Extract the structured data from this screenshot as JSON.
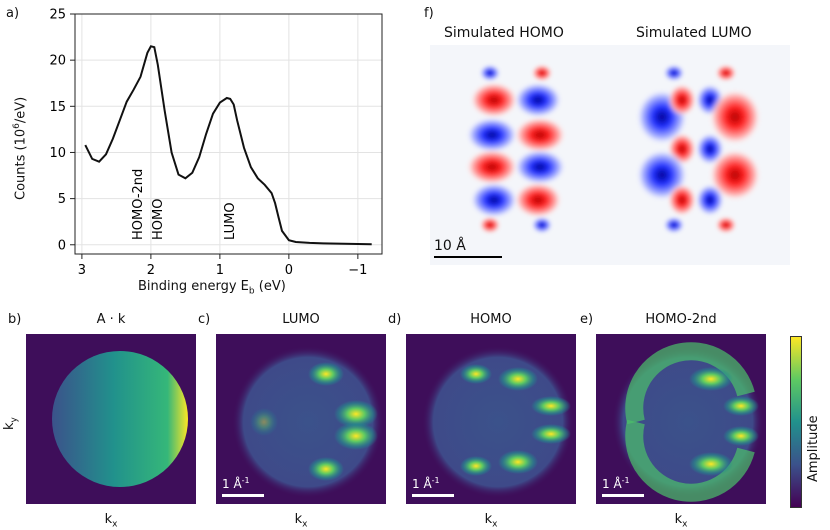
{
  "chart_data": [
    {
      "type": "line",
      "panel": "a)",
      "xlabel": "Binding energy E",
      "xlabel_sub": "b",
      "xlabel_unit": " (eV)",
      "ylabel": "Counts (10",
      "ylabel_sup": "6",
      "ylabel_unit": "/eV)",
      "xlim": [
        3.1,
        -1.35
      ],
      "ylim": [
        -1,
        25
      ],
      "xticks": [
        3,
        2,
        1,
        0,
        -1
      ],
      "xtick_labels": [
        "3",
        "2",
        "1",
        "0",
        "−1"
      ],
      "yticks": [
        0,
        5,
        10,
        15,
        20,
        25
      ],
      "grid": true,
      "x": [
        2.95,
        2.85,
        2.75,
        2.65,
        2.55,
        2.45,
        2.35,
        2.25,
        2.15,
        2.05,
        2.0,
        1.95,
        1.9,
        1.8,
        1.7,
        1.6,
        1.5,
        1.4,
        1.3,
        1.2,
        1.1,
        1.0,
        0.9,
        0.85,
        0.8,
        0.75,
        0.65,
        0.55,
        0.45,
        0.35,
        0.25,
        0.2,
        0.15,
        0.1,
        0.0,
        -0.1,
        -0.3,
        -0.5,
        -0.8,
        -1.2
      ],
      "y": [
        10.8,
        9.3,
        9.0,
        9.8,
        11.5,
        13.5,
        15.5,
        16.8,
        18.2,
        20.8,
        21.5,
        21.4,
        19.5,
        14.5,
        10.0,
        7.6,
        7.2,
        7.8,
        9.5,
        12.0,
        14.2,
        15.4,
        15.9,
        15.8,
        15.2,
        13.5,
        10.5,
        8.4,
        7.2,
        6.5,
        5.6,
        4.5,
        3.0,
        1.5,
        0.5,
        0.3,
        0.2,
        0.15,
        0.1,
        0.05
      ],
      "annotations": [
        "HOMO-2nd",
        "HOMO",
        "LUMO"
      ]
    }
  ],
  "panels": {
    "a": "a)",
    "b": "b)",
    "c": "c)",
    "d": "d)",
    "e": "e)",
    "f": "f)"
  },
  "simulation": {
    "homo_title": "Simulated HOMO",
    "lumo_title": "Simulated LUMO",
    "scale": "10 Å"
  },
  "momentum_maps": {
    "titles": [
      "A · k",
      "LUMO",
      "HOMO",
      "HOMO-2nd"
    ],
    "kx_label": "k",
    "kx_sub": "x",
    "ky_label": "k",
    "ky_sub": "y",
    "scale_label": "1 Å",
    "scale_sup": "-1"
  },
  "colorbar": {
    "label": "Amplitude",
    "colors": [
      "#440154",
      "#3b528b",
      "#21918c",
      "#5ec962",
      "#fde725"
    ]
  }
}
